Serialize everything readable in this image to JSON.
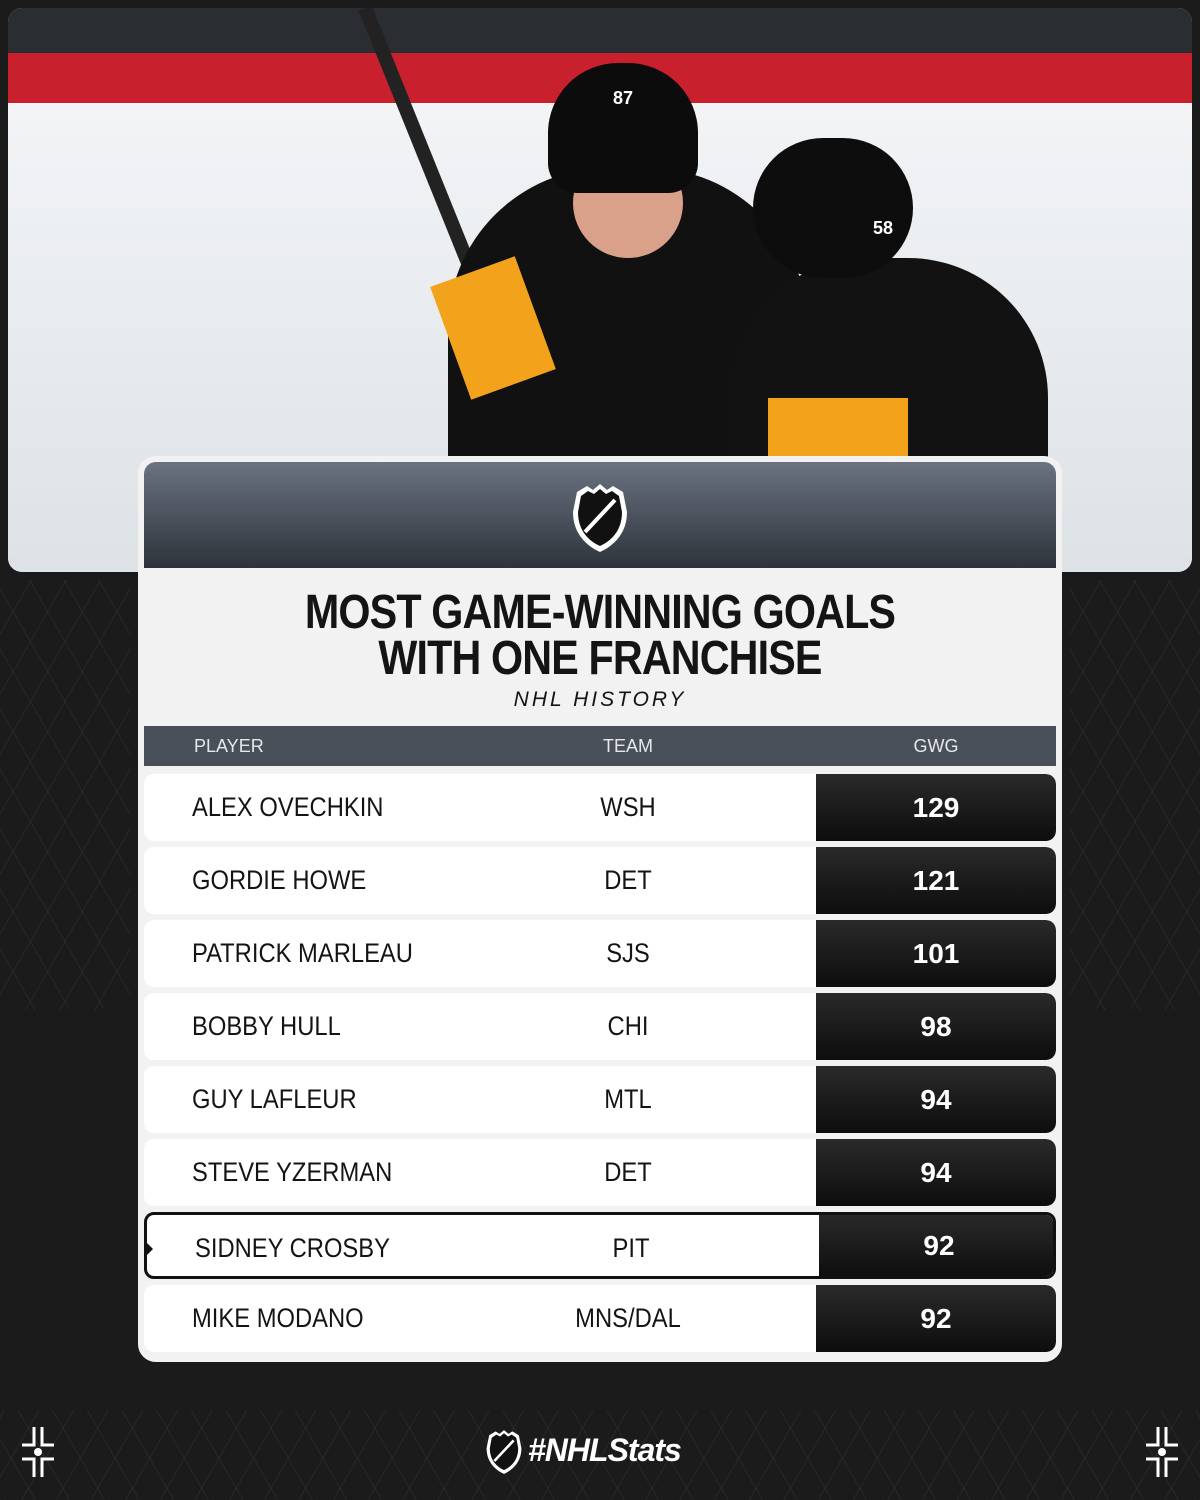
{
  "header": {
    "logo": "NHL",
    "title_line1": "MOST GAME-WINNING GOALS",
    "title_line2": "WITH ONE FRANCHISE",
    "subtitle": "NHL HISTORY"
  },
  "table": {
    "columns": [
      "PLAYER",
      "TEAM",
      "GWG"
    ],
    "rows": [
      {
        "player": "ALEX OVECHKIN",
        "team": "WSH",
        "gwg": "129"
      },
      {
        "player": "GORDIE HOWE",
        "team": "DET",
        "gwg": "121"
      },
      {
        "player": "PATRICK MARLEAU",
        "team": "SJS",
        "gwg": "101"
      },
      {
        "player": "BOBBY HULL",
        "team": "CHI",
        "gwg": "98"
      },
      {
        "player": "GUY LAFLEUR",
        "team": "MTL",
        "gwg": "94"
      },
      {
        "player": "STEVE YZERMAN",
        "team": "DET",
        "gwg": "94"
      },
      {
        "player": "SIDNEY CROSBY",
        "team": "PIT",
        "gwg": "92",
        "highlighted": true
      },
      {
        "player": "MIKE MODANO",
        "team": "MNS/DAL",
        "gwg": "92"
      }
    ]
  },
  "chart_data": {
    "type": "table",
    "title": "MOST GAME-WINNING GOALS WITH ONE FRANCHISE",
    "subtitle": "NHL HISTORY",
    "columns": [
      "PLAYER",
      "TEAM",
      "GWG"
    ],
    "rows": [
      [
        "ALEX OVECHKIN",
        "WSH",
        129
      ],
      [
        "GORDIE HOWE",
        "DET",
        121
      ],
      [
        "PATRICK MARLEAU",
        "SJS",
        101
      ],
      [
        "BOBBY HULL",
        "CHI",
        98
      ],
      [
        "GUY LAFLEUR",
        "MTL",
        94
      ],
      [
        "STEVE YZERMAN",
        "DET",
        94
      ],
      [
        "SIDNEY CROSBY",
        "PIT",
        92
      ],
      [
        "MIKE MODANO",
        "MNS/DAL",
        92
      ]
    ],
    "highlighted_row": "SIDNEY CROSBY"
  },
  "photo": {
    "jersey_numbers": [
      "87",
      "58"
    ]
  },
  "footer": {
    "hashtag": "#NHLStats"
  },
  "colors": {
    "background": "#1b1b1b",
    "card": "#f2f2f2",
    "table_header": "#4a505a",
    "value_cell": "#141414",
    "jersey_gold": "#f2a31b"
  }
}
